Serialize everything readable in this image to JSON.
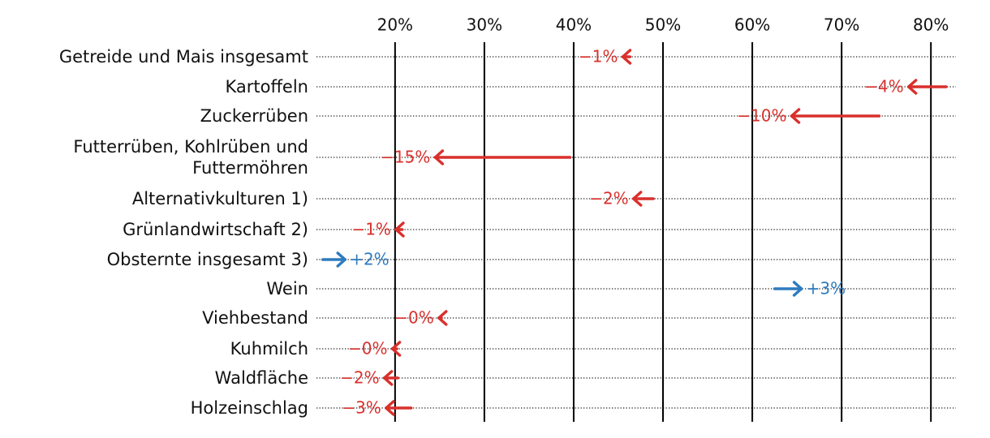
{
  "chart_data": {
    "type": "arrow",
    "categories": [
      "Getreide und Mais insgesamt",
      "Kartoffeln",
      "Zuckerrüben",
      "Futterrüben, Kohlrüben und\nFuttermöhren",
      "Alternativkulturen 1)",
      "Grünlandwirtschaft 2)",
      "Obsternte insgesamt 3)",
      "Wein",
      "Viehbestand",
      "Kuhmilch",
      "Waldfläche",
      "Holzeinschlag"
    ],
    "start": [
      46.3,
      81.7,
      74.2,
      39.6,
      48.9,
      20.8,
      11.9,
      62.5,
      25.2,
      20.2,
      20.3,
      21.8
    ],
    "end": [
      45.5,
      77.5,
      64.4,
      24.5,
      46.7,
      20.1,
      14.4,
      65.5,
      24.9,
      19.7,
      18.8,
      19.0
    ],
    "value_labels": [
      "−1%",
      "−4%",
      "−10%",
      "−15%",
      "−2%",
      "−1%",
      "+2%",
      "+3%",
      "−0%",
      "−0%",
      "−2%",
      "−3%"
    ],
    "colors": {
      "decrease": "#d9302c",
      "increase": "#2e7bbf"
    },
    "xlim": [
      11.2,
      82.8
    ],
    "xticks": [
      {
        "value": 20,
        "label": "20%"
      },
      {
        "value": 30,
        "label": "30%"
      },
      {
        "value": 40,
        "label": "40%"
      },
      {
        "value": 50,
        "label": "50%"
      },
      {
        "value": 60,
        "label": "60%"
      },
      {
        "value": 70,
        "label": "70%"
      },
      {
        "value": 80,
        "label": "80%"
      }
    ],
    "grid": true
  }
}
